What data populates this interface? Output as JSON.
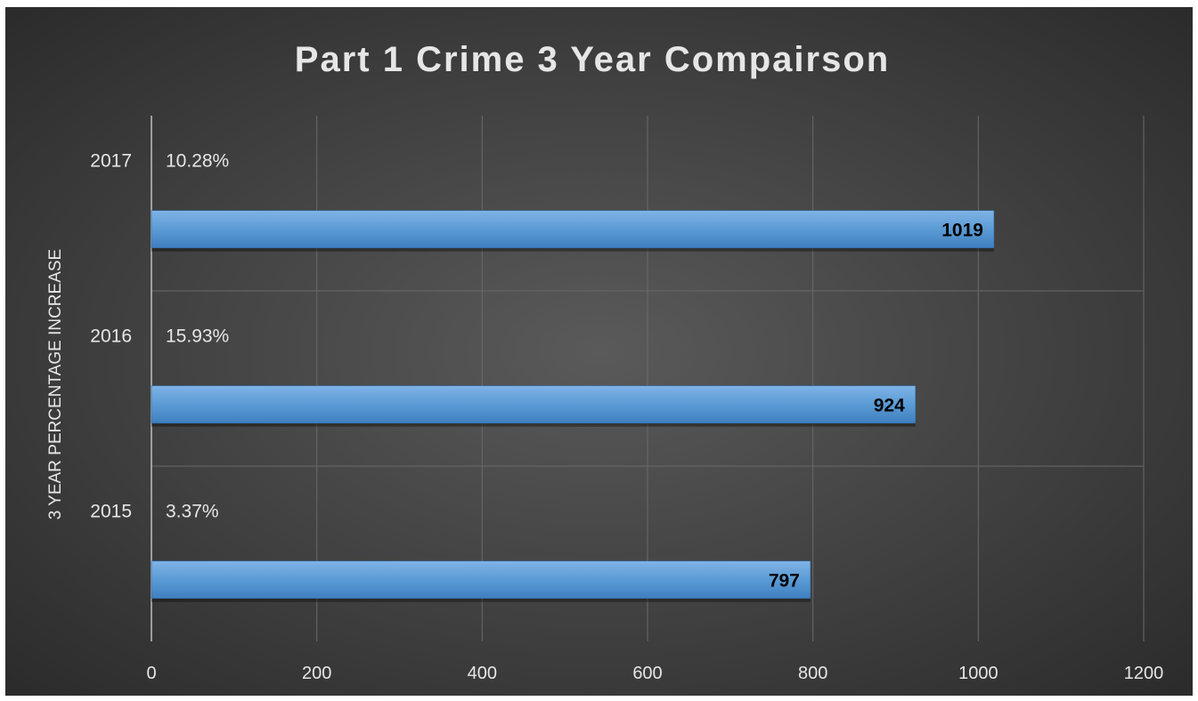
{
  "chart_data": {
    "type": "bar",
    "orientation": "horizontal",
    "title": "Part 1 Crime 3 Year Compairson",
    "ylabel": "3 YEAR PERCENTAGE INCREASE",
    "xlabel": "",
    "categories": [
      "2015",
      "2016",
      "2017"
    ],
    "secondary_labels": [
      "3.37%",
      "15.93%",
      "10.28%"
    ],
    "values": [
      797,
      924,
      1019
    ],
    "value_labels": [
      "797",
      "924",
      "1019"
    ],
    "xlim": [
      0,
      1200
    ],
    "xticks": [
      0,
      200,
      400,
      600,
      800,
      1000,
      1200
    ],
    "xtick_labels": [
      "0",
      "200",
      "400",
      "600",
      "800",
      "1000",
      "1200"
    ],
    "grid": true,
    "legend": "none",
    "colors": {
      "bar": "#5b9bd5",
      "bar_dark": "#3f7fc0",
      "text": "#e6e6e6",
      "value_label": "#000000",
      "gridline": "#6a6a6a"
    }
  }
}
